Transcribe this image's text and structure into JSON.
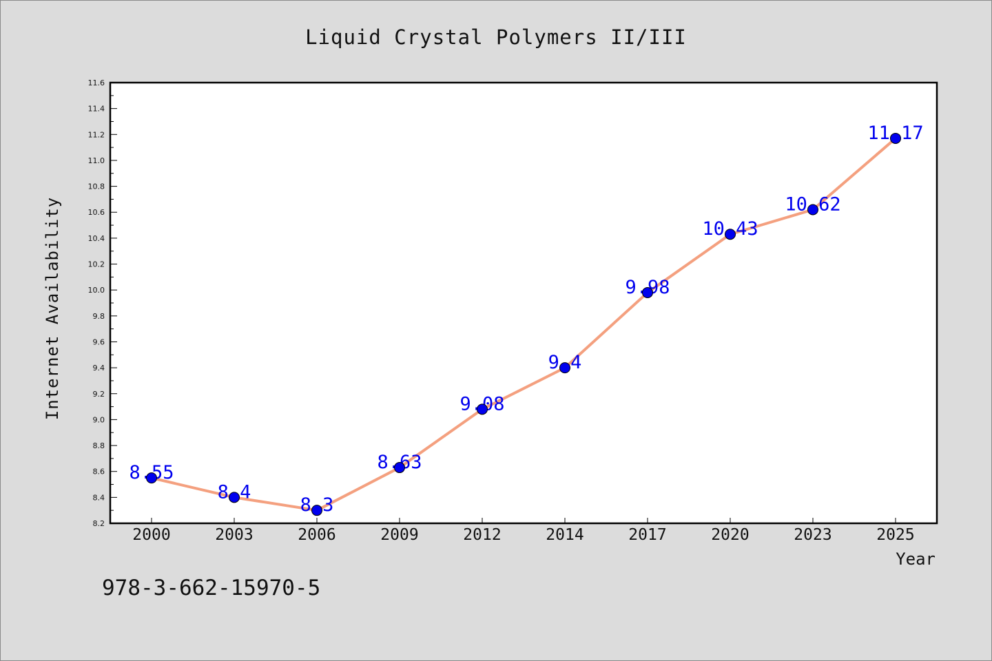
{
  "chart_data": {
    "type": "line",
    "title": "Liquid Crystal Polymers II/III",
    "xlabel": "Year",
    "ylabel": "Internet Availability",
    "categories": [
      "2000",
      "2003",
      "2006",
      "2009",
      "2012",
      "2014",
      "2017",
      "2020",
      "2023",
      "2025"
    ],
    "series": [
      {
        "values": [
          8.55,
          8.4,
          8.3,
          8.63,
          9.08,
          9.4,
          9.98,
          10.43,
          10.62,
          11.17
        ],
        "labels": [
          "8.55",
          "8.4",
          "8.3",
          "8.63",
          "9.08",
          "9.4",
          "9.98",
          "10.43",
          "10.62",
          "11.17"
        ]
      }
    ],
    "ylim": [
      8.2,
      11.6
    ],
    "yticks": [
      "8.2",
      "8.4",
      "8.6",
      "8.8",
      "9.0",
      "9.2",
      "9.4",
      "9.6",
      "9.8",
      "10.0",
      "10.2",
      "10.4",
      "10.6",
      "10.8",
      "11.0",
      "11.2",
      "11.4",
      "11.6"
    ],
    "grid": false,
    "legend": "none",
    "colors": {
      "line": "#f4a07f",
      "marker": "#0000ee",
      "data_label": "#0000ee",
      "background": "#dcdcdc",
      "plot_background": "#ffffff"
    }
  },
  "footnote": "978-3-662-15970-5"
}
